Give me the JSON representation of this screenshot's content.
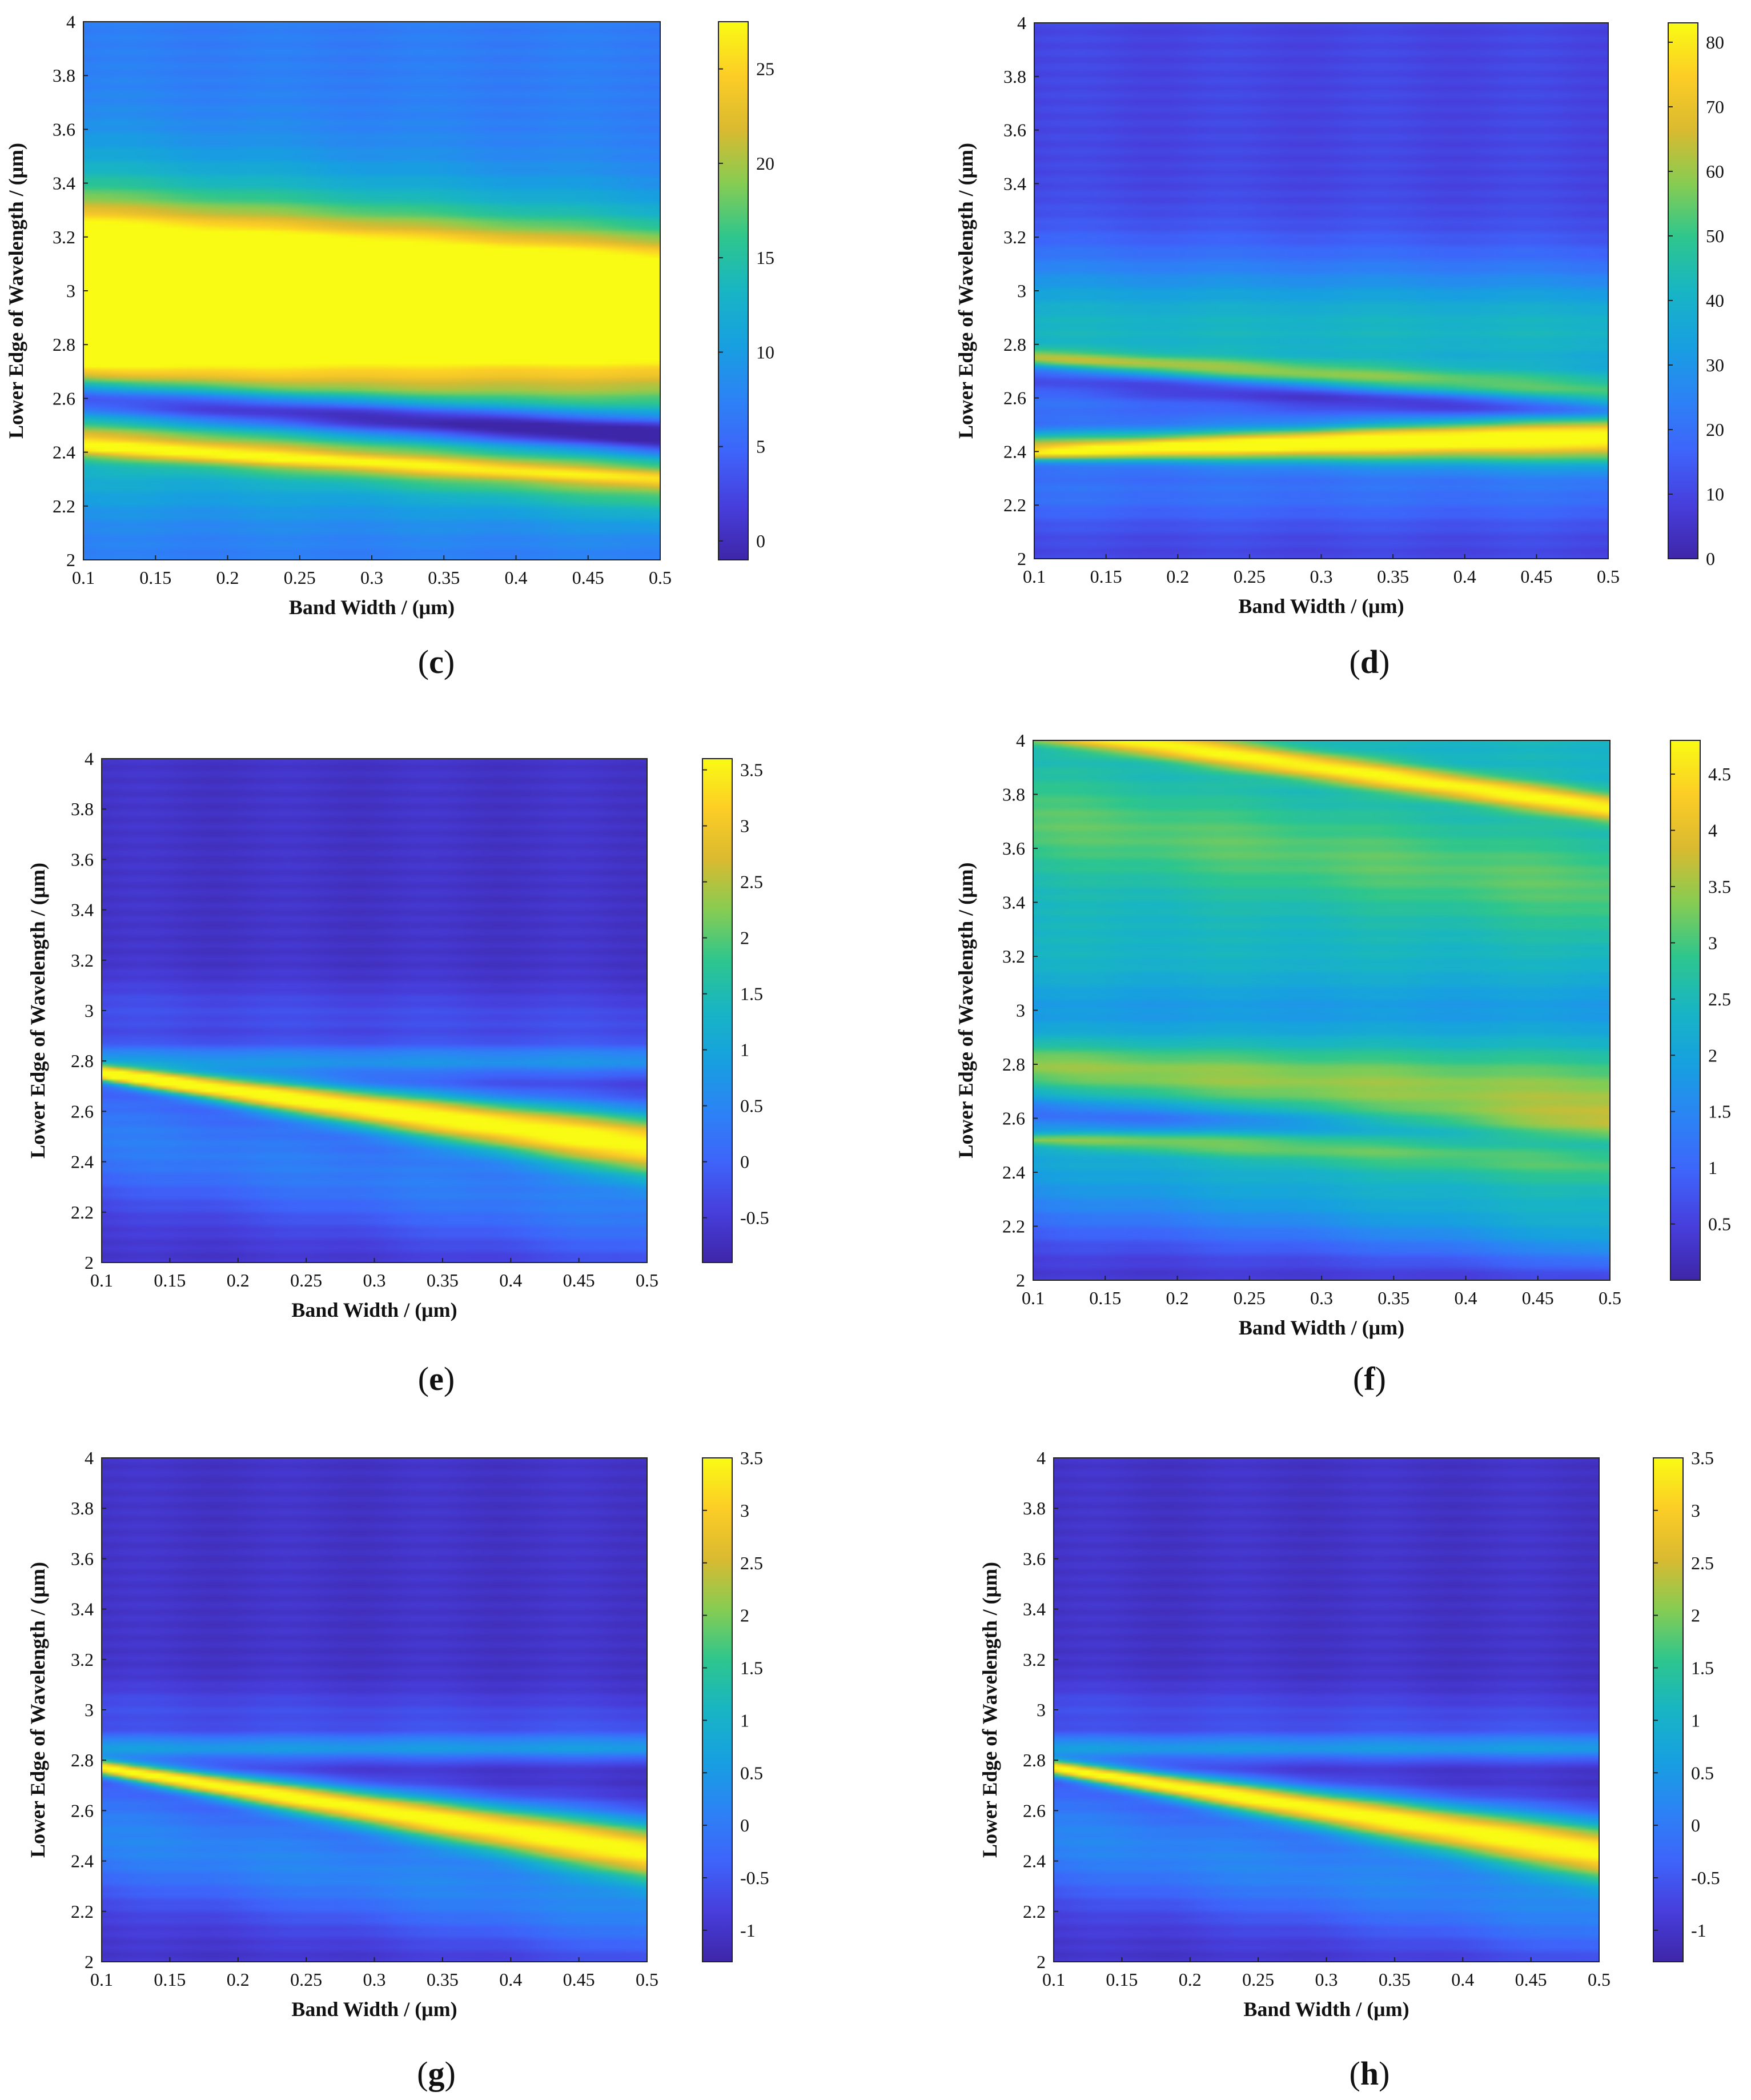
{
  "chart_data": [
    {
      "type": "heatmap",
      "panel": "c",
      "xlabel": "Band Width / (μm)",
      "ylabel": "Lower Edge of Wavelength / (μm)",
      "xlim": [
        0.1,
        0.5
      ],
      "ylim": [
        2,
        4
      ],
      "xticks": [
        "0.1",
        "0.15",
        "0.2",
        "0.25",
        "0.3",
        "0.35",
        "0.4",
        "0.45",
        "0.5"
      ],
      "yticks": [
        "2",
        "2.2",
        "2.4",
        "2.6",
        "2.8",
        "3",
        "3.2",
        "3.4",
        "3.6",
        "3.8",
        "4"
      ],
      "colorbar": {
        "min": -1,
        "max": 27.5,
        "ticks": [
          "0",
          "5",
          "10",
          "15",
          "20",
          "25"
        ],
        "tick_values": [
          0,
          5,
          10,
          15,
          20,
          25
        ]
      },
      "background": 0.28,
      "features": [
        {
          "y0": 2.95,
          "y1": 2.9,
          "w0": 0.42,
          "w1": 0.32,
          "v": 0.9
        },
        {
          "y0": 2.86,
          "y1": 2.84,
          "w0": 0.09,
          "w1": 0.05,
          "v": 1.0
        },
        {
          "y0": 3.12,
          "y1": 3.0,
          "w0": 0.16,
          "w1": 0.14,
          "v": 0.4
        },
        {
          "y0": 2.6,
          "y1": 2.46,
          "w0": 0.07,
          "w1": 0.07,
          "v": -0.55
        },
        {
          "y0": 2.44,
          "y1": 2.3,
          "w0": 0.06,
          "w1": 0.12,
          "v": 0.35
        },
        {
          "y0": 2.42,
          "y1": 2.3,
          "w0": 0.025,
          "w1": 0.03,
          "v": 0.25
        },
        {
          "y0": 2.3,
          "y1": 2.2,
          "w0": 0.14,
          "w1": 0.14,
          "v": 0.1
        }
      ]
    },
    {
      "type": "heatmap",
      "panel": "d",
      "xlabel": "Band Width / (μm)",
      "ylabel": "Lower Edge of Wavelength / (μm)",
      "xlim": [
        0.1,
        0.5
      ],
      "ylim": [
        2,
        4
      ],
      "xticks": [
        "0.1",
        "0.15",
        "0.2",
        "0.25",
        "0.3",
        "0.35",
        "0.4",
        "0.45",
        "0.5"
      ],
      "yticks": [
        "2",
        "2.2",
        "2.4",
        "2.6",
        "2.8",
        "3",
        "3.2",
        "3.4",
        "3.6",
        "3.8",
        "4"
      ],
      "colorbar": {
        "min": 0,
        "max": 83,
        "ticks": [
          "0",
          "10",
          "20",
          "30",
          "40",
          "50",
          "60",
          "70",
          "80"
        ],
        "tick_values": [
          0,
          10,
          20,
          30,
          40,
          50,
          60,
          70,
          80
        ]
      },
      "background": 0.12,
      "features": [
        {
          "y0": 2.85,
          "y1": 2.85,
          "w0": 0.28,
          "w1": 0.24,
          "v": 0.38
        },
        {
          "y0": 2.42,
          "y1": 2.43,
          "w0": 0.05,
          "w1": 0.09,
          "v": 0.62
        },
        {
          "y0": 2.39,
          "y1": 2.48,
          "w0": 0.02,
          "w1": 0.07,
          "v": 0.35
        },
        {
          "y0": 2.75,
          "y1": 2.62,
          "w0": 0.03,
          "w1": 0.07,
          "v": 0.35
        },
        {
          "y0": 2.67,
          "y1": 2.55,
          "w0": 0.06,
          "w1": 0.04,
          "v": -0.22
        },
        {
          "y0": 2.25,
          "y1": 2.25,
          "w0": 0.12,
          "w1": 0.12,
          "v": 0.12
        }
      ]
    },
    {
      "type": "heatmap",
      "panel": "e",
      "xlabel": "Band Width / (μm)",
      "ylabel": "Lower Edge of Wavelength / (μm)",
      "xlim": [
        0.1,
        0.5
      ],
      "ylim": [
        2,
        4
      ],
      "xticks": [
        "0.1",
        "0.15",
        "0.2",
        "0.25",
        "0.3",
        "0.35",
        "0.4",
        "0.45",
        "0.5"
      ],
      "yticks": [
        "2",
        "2.2",
        "2.4",
        "2.6",
        "2.8",
        "3",
        "3.2",
        "3.4",
        "3.6",
        "3.8",
        "4"
      ],
      "colorbar": {
        "min": -0.9,
        "max": 3.6,
        "ticks": [
          "-0.5",
          "0",
          "0.5",
          "1",
          "1.5",
          "2",
          "2.5",
          "3",
          "3.5"
        ],
        "tick_values": [
          -0.5,
          0,
          0.5,
          1,
          1.5,
          2,
          2.5,
          3,
          3.5
        ]
      },
      "background": 0.06,
      "features": [
        {
          "y0": 2.75,
          "y1": 2.47,
          "w0": 0.03,
          "w1": 0.13,
          "v": 0.92
        },
        {
          "y0": 2.8,
          "y1": 2.8,
          "w0": 0.06,
          "w1": 0.06,
          "v": 0.28
        },
        {
          "y0": 2.5,
          "y1": 2.2,
          "w0": 0.25,
          "w1": 0.22,
          "v": 0.22
        },
        {
          "y0": 3.0,
          "y1": 2.95,
          "w0": 0.12,
          "w1": 0.12,
          "v": 0.08
        }
      ]
    },
    {
      "type": "heatmap",
      "panel": "f",
      "xlabel": "Band Width / (μm)",
      "ylabel": "Lower Edge of Wavelength / (μm)",
      "xlim": [
        0.1,
        0.5
      ],
      "ylim": [
        2,
        4
      ],
      "xticks": [
        "0.1",
        "0.15",
        "0.2",
        "0.25",
        "0.3",
        "0.35",
        "0.4",
        "0.45",
        "0.5"
      ],
      "yticks": [
        "2",
        "2.2",
        "2.4",
        "2.6",
        "2.8",
        "3",
        "3.2",
        "3.4",
        "3.6",
        "3.8",
        "4"
      ],
      "colorbar": {
        "min": 0,
        "max": 4.8,
        "ticks": [
          "0.5",
          "1",
          "1.5",
          "2",
          "2.5",
          "3",
          "3.5",
          "4",
          "4.5"
        ],
        "tick_values": [
          0.5,
          1,
          1.5,
          2,
          2.5,
          3,
          3.5,
          4,
          4.5
        ]
      },
      "background": 0.5,
      "features": [
        {
          "y0": 4.05,
          "y1": 3.75,
          "w0": 0.05,
          "w1": 0.05,
          "v": 0.5
        },
        {
          "y0": 3.7,
          "y1": 3.45,
          "w0": 0.18,
          "w1": 0.18,
          "v": 0.15
        },
        {
          "y0": 3.0,
          "y1": 3.0,
          "w0": 0.12,
          "w1": 0.12,
          "v": -0.12
        },
        {
          "y0": 2.8,
          "y1": 2.67,
          "w0": 0.08,
          "w1": 0.16,
          "v": 0.22
        },
        {
          "y0": 2.52,
          "y1": 2.5,
          "w0": 0.02,
          "w1": 0.12,
          "v": 0.25
        },
        {
          "y0": 2.62,
          "y1": 2.5,
          "w0": 0.06,
          "w1": 0.06,
          "v": -0.25
        },
        {
          "y0": 2.0,
          "y1": 1.95,
          "w0": 0.33,
          "w1": 0.16,
          "v": -0.42
        }
      ]
    },
    {
      "type": "heatmap",
      "panel": "g",
      "xlabel": "Band Width / (μm)",
      "ylabel": "Lower Edge of Wavelength / (μm)",
      "xlim": [
        0.1,
        0.5
      ],
      "ylim": [
        2,
        4
      ],
      "xticks": [
        "0.1",
        "0.15",
        "0.2",
        "0.25",
        "0.3",
        "0.35",
        "0.4",
        "0.45",
        "0.5"
      ],
      "yticks": [
        "2",
        "2.2",
        "2.4",
        "2.6",
        "2.8",
        "3",
        "3.2",
        "3.4",
        "3.6",
        "3.8",
        "4"
      ],
      "colorbar": {
        "min": -1.3,
        "max": 3.5,
        "ticks": [
          "-1",
          "-0.5",
          "0",
          "0.5",
          "1",
          "1.5",
          "2",
          "2.5",
          "3",
          "3.5"
        ],
        "tick_values": [
          -1,
          -0.5,
          0,
          0.5,
          1,
          1.5,
          2,
          2.5,
          3,
          3.5
        ]
      },
      "background": 0.06,
      "features": [
        {
          "y0": 2.77,
          "y1": 2.44,
          "w0": 0.03,
          "w1": 0.12,
          "v": 0.9
        },
        {
          "y0": 2.85,
          "y1": 2.85,
          "w0": 0.05,
          "w1": 0.05,
          "v": 0.3
        },
        {
          "y0": 2.5,
          "y1": 2.2,
          "w0": 0.24,
          "w1": 0.2,
          "v": 0.25
        },
        {
          "y0": 3.0,
          "y1": 2.95,
          "w0": 0.1,
          "w1": 0.1,
          "v": 0.08
        }
      ]
    },
    {
      "type": "heatmap",
      "panel": "h",
      "xlabel": "Band Width / (μm)",
      "ylabel": "Lower Edge of Wavelength / (μm)",
      "xlim": [
        0.1,
        0.5
      ],
      "ylim": [
        2,
        4
      ],
      "xticks": [
        "0.1",
        "0.15",
        "0.2",
        "0.25",
        "0.3",
        "0.35",
        "0.4",
        "0.45",
        "0.5"
      ],
      "yticks": [
        "2",
        "2.2",
        "2.4",
        "2.6",
        "2.8",
        "3",
        "3.2",
        "3.4",
        "3.6",
        "3.8",
        "4"
      ],
      "colorbar": {
        "min": -1.3,
        "max": 3.5,
        "ticks": [
          "-1",
          "-0.5",
          "0",
          "0.5",
          "1",
          "1.5",
          "2",
          "2.5",
          "3",
          "3.5"
        ],
        "tick_values": [
          -1,
          -0.5,
          0,
          0.5,
          1,
          1.5,
          2,
          2.5,
          3,
          3.5
        ]
      },
      "background": 0.06,
      "features": [
        {
          "y0": 2.77,
          "y1": 2.44,
          "w0": 0.03,
          "w1": 0.12,
          "v": 0.9
        },
        {
          "y0": 2.85,
          "y1": 2.85,
          "w0": 0.05,
          "w1": 0.05,
          "v": 0.3
        },
        {
          "y0": 2.5,
          "y1": 2.2,
          "w0": 0.24,
          "w1": 0.2,
          "v": 0.25
        },
        {
          "y0": 3.0,
          "y1": 2.95,
          "w0": 0.1,
          "w1": 0.1,
          "v": 0.08
        }
      ]
    }
  ],
  "captions": {
    "c": "c",
    "d": "d",
    "e": "e",
    "f": "f",
    "g": "g",
    "h": "h"
  }
}
